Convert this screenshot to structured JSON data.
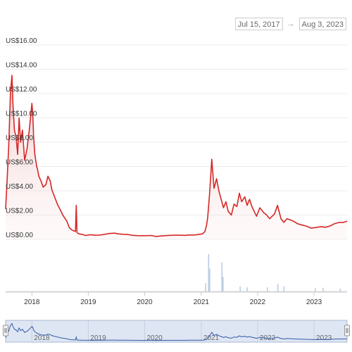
{
  "date_range": {
    "start": "Jul 15, 2017",
    "end": "Aug 3, 2023",
    "arrow": "→"
  },
  "chart_data": {
    "type": "line",
    "title": "",
    "xlabel": "",
    "ylabel": "",
    "y_ticks": [
      "US$0.00",
      "US$2.00",
      "US$4.00",
      "US$6.00",
      "US$8.00",
      "US$10.00",
      "US$12.00",
      "US$14.00",
      "US$16.00"
    ],
    "ylim": [
      0,
      16
    ],
    "x_ticks": [
      "2018",
      "2019",
      "2020",
      "2021",
      "2022",
      "2023"
    ],
    "xlim": [
      "2017-07-15",
      "2023-08-03"
    ],
    "grid": true,
    "line_color": "#d62728",
    "volume_color": "#b9cde5",
    "navigator_color": "#2f5aa8",
    "series": [
      {
        "x": [
          "2017-07-15",
          "2017-07-25",
          "2017-08-05",
          "2017-08-15",
          "2017-08-25",
          "2017-09-01",
          "2017-09-10",
          "2017-09-20",
          "2017-10-01",
          "2017-10-10",
          "2017-10-20",
          "2017-11-01",
          "2017-11-15",
          "2017-12-01",
          "2017-12-15",
          "2018-01-01",
          "2018-01-07",
          "2018-01-12",
          "2018-01-20",
          "2018-02-01",
          "2018-02-06",
          "2018-02-15",
          "2018-03-01",
          "2018-03-15",
          "2018-04-01",
          "2018-04-15",
          "2018-04-30",
          "2018-05-10",
          "2018-05-25",
          "2018-06-15",
          "2018-07-01",
          "2018-07-20",
          "2018-08-15",
          "2018-09-01",
          "2018-09-20",
          "2018-10-10",
          "2018-10-15",
          "2018-10-20",
          "2018-11-01",
          "2018-11-25",
          "2018-12-15",
          "2019-01-15",
          "2019-02-15",
          "2019-03-15",
          "2019-04-15",
          "2019-05-15",
          "2019-06-20",
          "2019-07-15",
          "2019-08-15",
          "2019-09-15",
          "2019-10-15",
          "2019-11-15",
          "2019-12-15",
          "2020-01-15",
          "2020-02-15",
          "2020-03-13",
          "2020-04-15",
          "2020-05-15",
          "2020-06-15",
          "2020-07-15",
          "2020-08-15",
          "2020-09-15",
          "2020-10-15",
          "2020-11-15",
          "2020-12-01",
          "2020-12-20",
          "2021-01-10",
          "2021-01-25",
          "2021-02-05",
          "2021-02-12",
          "2021-02-18",
          "2021-02-25",
          "2021-03-10",
          "2021-03-25",
          "2021-04-10",
          "2021-04-25",
          "2021-05-10",
          "2021-05-25",
          "2021-06-10",
          "2021-06-25",
          "2021-07-15",
          "2021-08-01",
          "2021-08-20",
          "2021-09-05",
          "2021-09-20",
          "2021-10-10",
          "2021-10-25",
          "2021-11-10",
          "2021-11-25",
          "2021-12-10",
          "2021-12-25",
          "2022-01-15",
          "2022-02-10",
          "2022-03-01",
          "2022-03-20",
          "2022-04-05",
          "2022-04-20",
          "2022-05-10",
          "2022-06-01",
          "2022-06-20",
          "2022-07-10",
          "2022-08-01",
          "2022-08-20",
          "2022-09-15",
          "2022-10-10",
          "2022-11-10",
          "2022-12-15",
          "2023-01-15",
          "2023-02-15",
          "2023-03-15",
          "2023-04-15",
          "2023-05-15",
          "2023-06-15",
          "2023-07-10",
          "2023-07-25",
          "2023-08-03"
        ],
        "y": [
          2.5,
          5,
          8,
          12,
          13.5,
          11,
          9,
          8.5,
          7,
          10,
          8,
          9,
          6.5,
          7.5,
          9,
          11.2,
          10.3,
          8.5,
          7,
          6,
          5.8,
          5.2,
          4.8,
          4.3,
          4.5,
          5.2,
          4.8,
          4.1,
          3.6,
          2.9,
          2.5,
          2.0,
          1.5,
          0.95,
          0.75,
          0.65,
          2.8,
          0.55,
          0.45,
          0.4,
          0.32,
          0.38,
          0.34,
          0.35,
          0.41,
          0.48,
          0.51,
          0.45,
          0.42,
          0.4,
          0.33,
          0.31,
          0.3,
          0.31,
          0.32,
          0.24,
          0.28,
          0.31,
          0.33,
          0.35,
          0.34,
          0.33,
          0.36,
          0.36,
          0.38,
          0.42,
          0.45,
          0.65,
          1.2,
          1.8,
          2.8,
          3.9,
          6.6,
          4.2,
          5,
          4,
          3.3,
          2.6,
          3.1,
          2.3,
          2.0,
          2.9,
          2.7,
          3.8,
          3.1,
          3.5,
          2.8,
          3.3,
          2.7,
          2.3,
          1.9,
          2.6,
          2.2,
          2.0,
          1.7,
          1.9,
          2.1,
          2.8,
          1.7,
          1.4,
          1.7,
          1.6,
          1.5,
          1.3,
          1.2,
          1.1,
          0.92,
          0.98,
          1.05,
          1.0,
          1.1,
          1.3,
          1.4,
          1.4,
          1.45,
          1.5
        ]
      }
    ],
    "volume": {
      "x": [
        "2021-02-18",
        "2021-02-25",
        "2021-01-30",
        "2021-05-15",
        "2021-05-22",
        "2021-09-10",
        "2021-10-25",
        "2022-03-05",
        "2022-05-12",
        "2022-06-20",
        "2023-01-10",
        "2023-03-01",
        "2023-06-20"
      ],
      "y": [
        0.9,
        0.55,
        0.2,
        0.7,
        0.35,
        0.12,
        0.1,
        0.1,
        0.18,
        0.12,
        0.08,
        0.09,
        0.07
      ]
    }
  }
}
